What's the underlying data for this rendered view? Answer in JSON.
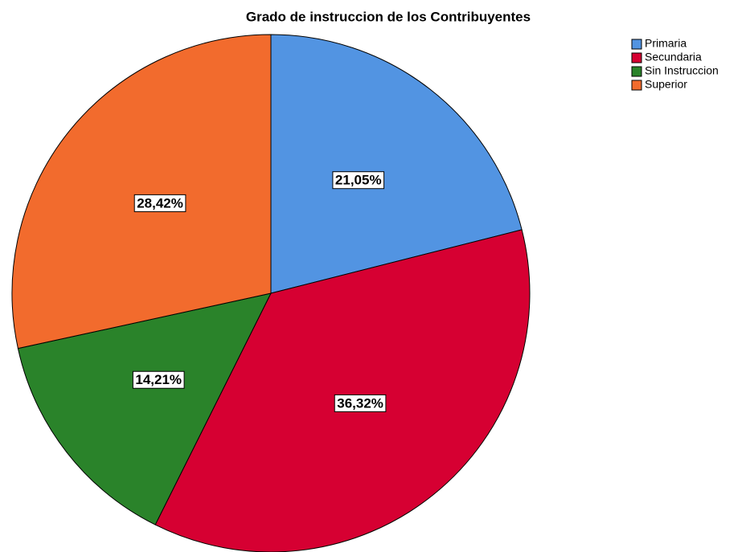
{
  "chart_data": {
    "type": "pie",
    "title": "Grado de instruccion de los Contribuyentes",
    "categories": [
      "Primaria",
      "Secundaria",
      "Sin Instruccion",
      "Superior"
    ],
    "values": [
      21.05,
      36.32,
      14.21,
      28.42
    ],
    "value_labels": [
      "21,05%",
      "36,32%",
      "14,21%",
      "28,42%"
    ],
    "colors": [
      "#5294e2",
      "#d60032",
      "#2a832a",
      "#f26b2d"
    ],
    "legend": "right"
  }
}
